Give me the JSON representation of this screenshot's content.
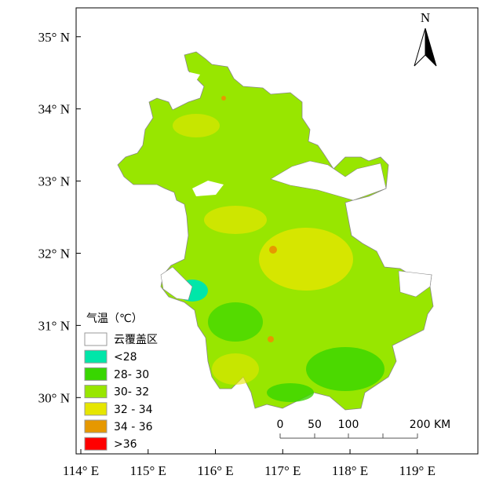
{
  "map": {
    "xlim": [
      113.93,
      119.9
    ],
    "ylim": [
      29.22,
      35.4
    ],
    "xticks": [
      {
        "value": 114,
        "label": "114° E"
      },
      {
        "value": 115,
        "label": "115° E"
      },
      {
        "value": 116,
        "label": "116° E"
      },
      {
        "value": 117,
        "label": "117° E"
      },
      {
        "value": 118,
        "label": "118° E"
      },
      {
        "value": 119,
        "label": "119° E"
      }
    ],
    "yticks": [
      {
        "value": 35,
        "label": "35° N"
      },
      {
        "value": 34,
        "label": "34° N"
      },
      {
        "value": 33,
        "label": "33° N"
      },
      {
        "value": 32,
        "label": "32° N"
      },
      {
        "value": 31,
        "label": "31° N"
      },
      {
        "value": 30,
        "label": "30° N"
      }
    ],
    "north": "N",
    "legend": {
      "title": "气温（℃）",
      "items": [
        {
          "label": "云覆盖区",
          "color": "#ffffff"
        },
        {
          "label": "<28",
          "color": "#00e6a9"
        },
        {
          "label": "28- 30",
          "color": "#38d600"
        },
        {
          "label": "30- 32",
          "color": "#98e600"
        },
        {
          "label": "32 - 34",
          "color": "#e6e600"
        },
        {
          "label": "34 - 36",
          "color": "#e69800"
        },
        {
          "label": ">36",
          "color": "#ff0000"
        }
      ]
    },
    "scale": [
      "0",
      "50",
      "100",
      "200 KM"
    ]
  }
}
